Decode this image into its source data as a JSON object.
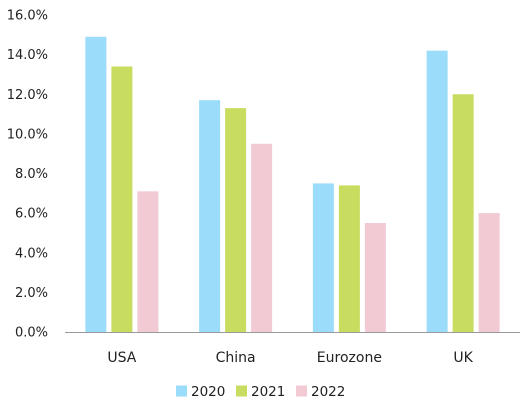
{
  "chart_data": {
    "type": "bar",
    "title": "",
    "xlabel": "",
    "ylabel": "",
    "categories": [
      "USA",
      "China",
      "Eurozone",
      "UK"
    ],
    "series": [
      {
        "name": "2020",
        "values": [
          14.9,
          11.7,
          7.5,
          14.2
        ]
      },
      {
        "name": "2021",
        "values": [
          13.4,
          11.3,
          7.4,
          12.0
        ]
      },
      {
        "name": "2022",
        "values": [
          7.1,
          9.5,
          5.5,
          6.0
        ]
      }
    ],
    "ylim": [
      0,
      16
    ],
    "y_ticks": [
      "0.0%",
      "2.0%",
      "4.0%",
      "6.0%",
      "8.0%",
      "10.0%",
      "12.0%",
      "14.0%",
      "16.0%"
    ],
    "y_tick_values": [
      0,
      2,
      4,
      6,
      8,
      10,
      12,
      14,
      16
    ],
    "grid": false,
    "legend_position": "bottom",
    "colors": [
      "#9bdcfa",
      "#c8dc60",
      "#f1cad4"
    ]
  }
}
